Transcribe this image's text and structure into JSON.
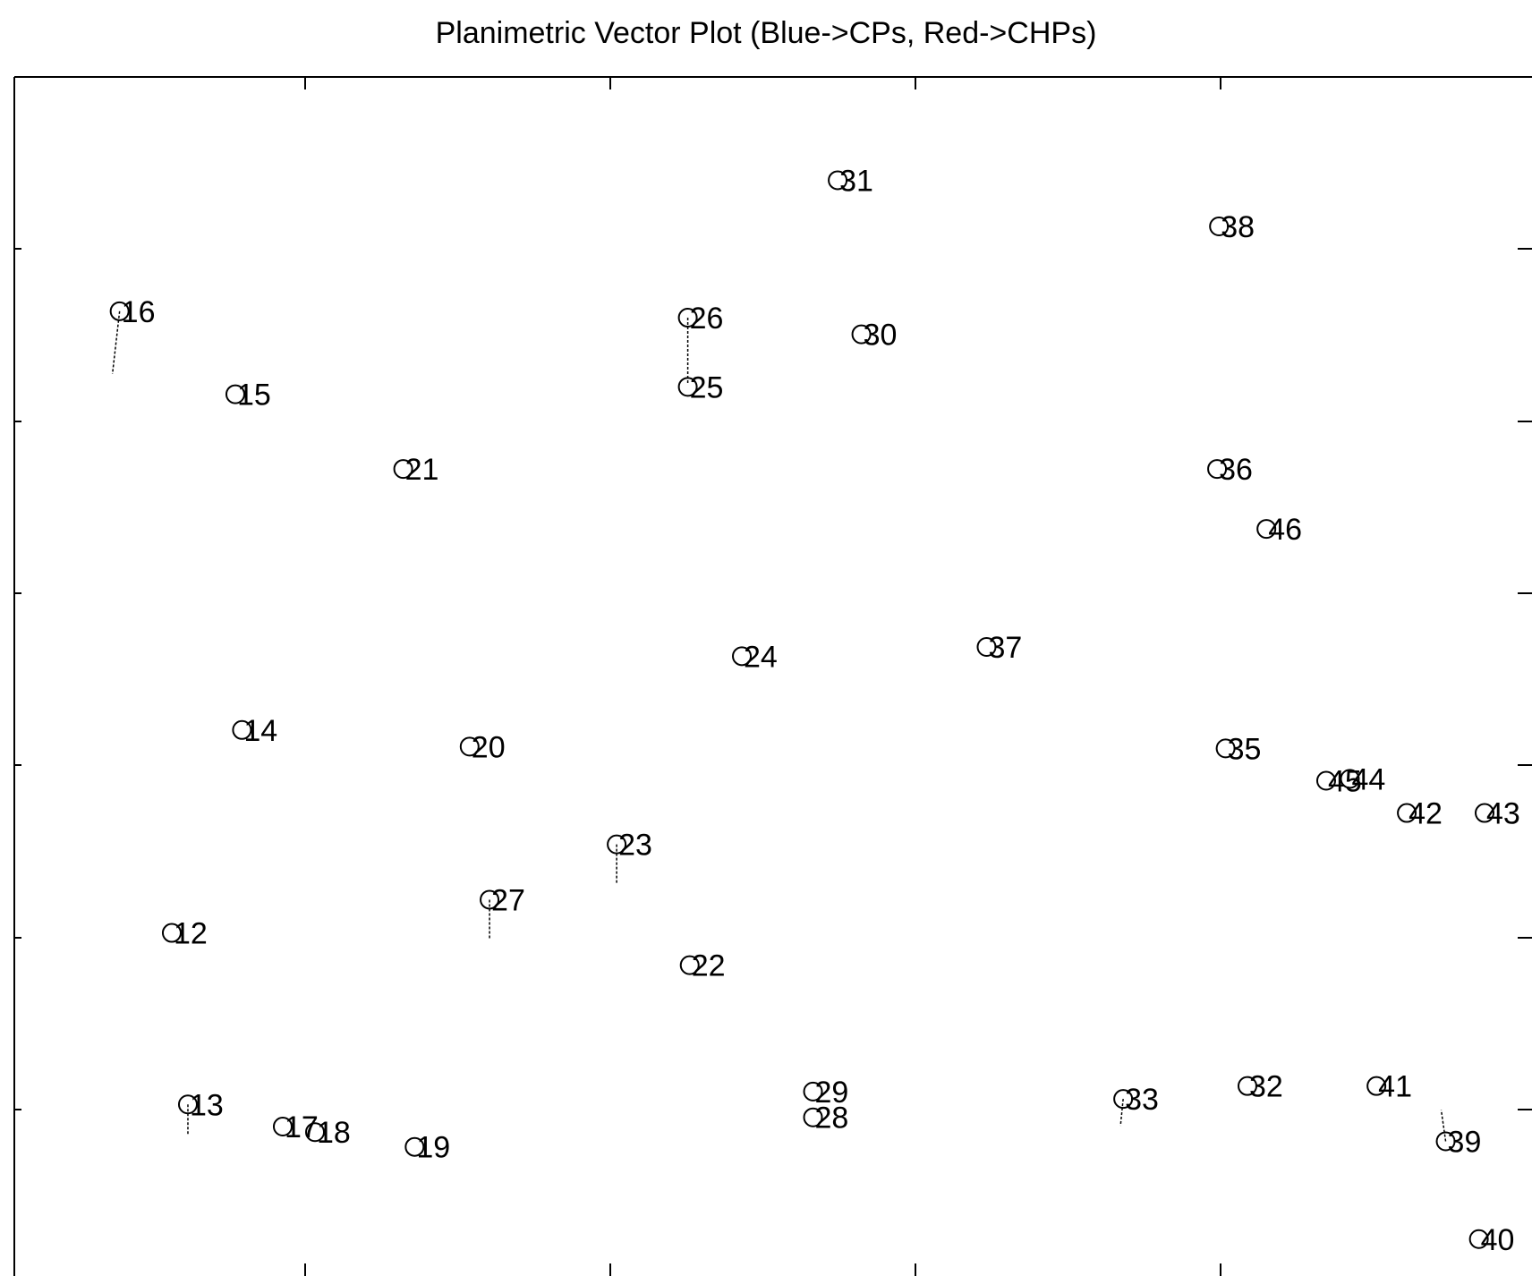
{
  "chart_data": {
    "type": "scatter",
    "title": "Planimetric Vector Plot (Blue->CPs, Red->CHPs)",
    "xlabel": "",
    "ylabel": "",
    "xlim": [
      0,
      1600
    ],
    "ylim": [
      0,
      1300
    ],
    "grid": false,
    "legend": "none",
    "points": [
      {
        "label": "31",
        "x": 868,
        "y": 1188,
        "dx": 0,
        "dy": 0
      },
      {
        "label": "38",
        "x": 1270,
        "y": 1138,
        "dx": 0,
        "dy": 0
      },
      {
        "label": "16",
        "x": 111,
        "y": 1046,
        "dx": -8,
        "dy": -70
      },
      {
        "label": "26",
        "x": 710,
        "y": 1039,
        "dx": 0,
        "dy": -75
      },
      {
        "label": "30",
        "x": 893,
        "y": 1021,
        "dx": 0,
        "dy": 0
      },
      {
        "label": "25",
        "x": 710,
        "y": 964,
        "dx": 0,
        "dy": 0
      },
      {
        "label": "15",
        "x": 233,
        "y": 956,
        "dx": 0,
        "dy": 0
      },
      {
        "label": "21",
        "x": 410,
        "y": 875,
        "dx": 0,
        "dy": 0
      },
      {
        "label": "36",
        "x": 1268,
        "y": 875,
        "dx": 0,
        "dy": 0
      },
      {
        "label": "46",
        "x": 1320,
        "y": 810,
        "dx": 0,
        "dy": 0
      },
      {
        "label": "37",
        "x": 1025,
        "y": 682,
        "dx": 0,
        "dy": 0
      },
      {
        "label": "24",
        "x": 767,
        "y": 672,
        "dx": 0,
        "dy": 0
      },
      {
        "label": "14",
        "x": 240,
        "y": 592,
        "dx": 0,
        "dy": 0
      },
      {
        "label": "20",
        "x": 480,
        "y": 574,
        "dx": 0,
        "dy": 0
      },
      {
        "label": "35",
        "x": 1277,
        "y": 572,
        "dx": 0,
        "dy": 0
      },
      {
        "label": "45",
        "x": 1383,
        "y": 537,
        "dx": 0,
        "dy": 0
      },
      {
        "label": "44",
        "x": 1408,
        "y": 539,
        "dx": 0,
        "dy": 0
      },
      {
        "label": "42",
        "x": 1468,
        "y": 502,
        "dx": 0,
        "dy": 0
      },
      {
        "label": "43",
        "x": 1550,
        "y": 502,
        "dx": 0,
        "dy": 0
      },
      {
        "label": "23",
        "x": 635,
        "y": 468,
        "dx": 0,
        "dy": -45
      },
      {
        "label": "27",
        "x": 501,
        "y": 408,
        "dx": 0,
        "dy": -45
      },
      {
        "label": "12",
        "x": 166,
        "y": 372,
        "dx": 0,
        "dy": 0
      },
      {
        "label": "22",
        "x": 712,
        "y": 337,
        "dx": 0,
        "dy": 0
      },
      {
        "label": "29",
        "x": 842,
        "y": 200,
        "dx": 0,
        "dy": 0
      },
      {
        "label": "33",
        "x": 1169,
        "y": 192,
        "dx": -3,
        "dy": -30
      },
      {
        "label": "32",
        "x": 1300,
        "y": 206,
        "dx": 0,
        "dy": 0
      },
      {
        "label": "41",
        "x": 1436,
        "y": 206,
        "dx": 0,
        "dy": 0
      },
      {
        "label": "13",
        "x": 183,
        "y": 186,
        "dx": 0,
        "dy": -35
      },
      {
        "label": "28",
        "x": 842,
        "y": 172,
        "dx": 0,
        "dy": 0
      },
      {
        "label": "17",
        "x": 283,
        "y": 162,
        "dx": 0,
        "dy": 0
      },
      {
        "label": "18",
        "x": 317,
        "y": 156,
        "dx": 0,
        "dy": 0
      },
      {
        "label": "39",
        "x": 1509,
        "y": 146,
        "dx": -5,
        "dy": 35
      },
      {
        "label": "19",
        "x": 422,
        "y": 140,
        "dx": 0,
        "dy": 0
      },
      {
        "label": "40",
        "x": 1544,
        "y": 40,
        "dx": 0,
        "dy": 0
      }
    ]
  }
}
